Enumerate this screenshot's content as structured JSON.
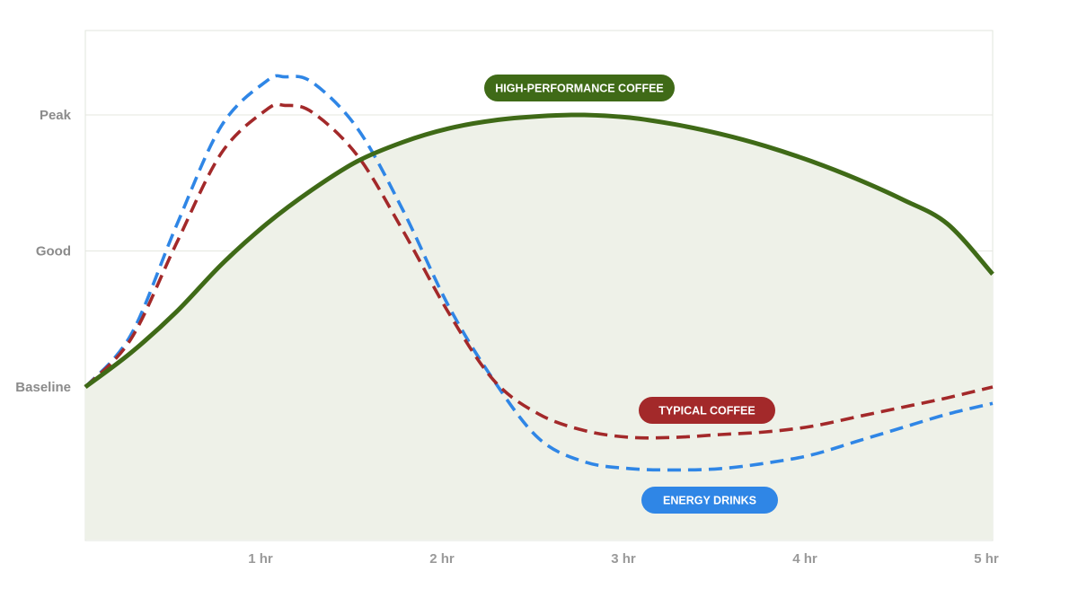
{
  "chart_data": {
    "type": "line",
    "title": "",
    "xlabel": "",
    "ylabel": "",
    "x_unit": "hours",
    "xlim": [
      0,
      5
    ],
    "ylim": [
      -1.1,
      2.1
    ],
    "x_ticks": [
      {
        "value": 1,
        "label": "1 hr"
      },
      {
        "value": 2,
        "label": "2 hr"
      },
      {
        "value": 3,
        "label": "3 hr"
      },
      {
        "value": 4,
        "label": "4 hr"
      },
      {
        "value": 5,
        "label": "5 hr"
      }
    ],
    "y_ticks": [
      {
        "value": 0,
        "label": "Baseline"
      },
      {
        "value": 1,
        "label": "Good"
      },
      {
        "value": 2,
        "label": "Peak"
      }
    ],
    "grid": "horizontal",
    "series": [
      {
        "name": "HIGH-PERFORMANCE COFFEE",
        "color": "#3f6a17",
        "style": "solid",
        "fill": "#eef1e8",
        "x": [
          0,
          0.25,
          0.5,
          0.75,
          1.0,
          1.25,
          1.5,
          1.75,
          2.0,
          2.25,
          2.5,
          2.75,
          3.0,
          3.25,
          3.5,
          3.75,
          4.0,
          4.25,
          4.5,
          4.75,
          5.0
        ],
        "y": [
          0,
          0.25,
          0.55,
          0.9,
          1.2,
          1.45,
          1.66,
          1.8,
          1.9,
          1.96,
          1.99,
          2.0,
          1.98,
          1.93,
          1.86,
          1.77,
          1.66,
          1.53,
          1.38,
          1.2,
          0.83
        ]
      },
      {
        "name": "TYPICAL COFFEE",
        "color": "#a3292a",
        "style": "dashed",
        "x": [
          0,
          0.25,
          0.5,
          0.75,
          1.0,
          1.1,
          1.25,
          1.5,
          1.75,
          2.0,
          2.25,
          2.5,
          2.75,
          3.0,
          3.25,
          3.5,
          3.75,
          4.0,
          4.25,
          4.5,
          4.75,
          5.0
        ],
        "y": [
          0,
          0.35,
          1.05,
          1.72,
          2.04,
          2.07,
          2.02,
          1.7,
          1.15,
          0.55,
          0.05,
          -0.2,
          -0.32,
          -0.37,
          -0.37,
          -0.35,
          -0.33,
          -0.29,
          -0.22,
          -0.15,
          -0.08,
          0
        ]
      },
      {
        "name": "ENERGY DRINKS",
        "color": "#2f86e6",
        "style": "dashed",
        "x": [
          0,
          0.25,
          0.5,
          0.75,
          1.0,
          1.1,
          1.25,
          1.5,
          1.75,
          2.0,
          2.25,
          2.5,
          2.75,
          3.0,
          3.25,
          3.5,
          3.75,
          4.0,
          4.25,
          4.5,
          4.75,
          5.0
        ],
        "y": [
          0,
          0.38,
          1.18,
          1.92,
          2.25,
          2.28,
          2.24,
          1.9,
          1.3,
          0.6,
          0.05,
          -0.38,
          -0.55,
          -0.6,
          -0.61,
          -0.6,
          -0.56,
          -0.5,
          -0.4,
          -0.3,
          -0.2,
          -0.12
        ]
      }
    ],
    "annotations": [
      {
        "text": "HIGH-PERFORMANCE COFFEE",
        "color": "#3f6a17"
      },
      {
        "text": "TYPICAL COFFEE",
        "color": "#a3292a"
      },
      {
        "text": "ENERGY DRINKS",
        "color": "#2f86e6"
      }
    ]
  }
}
